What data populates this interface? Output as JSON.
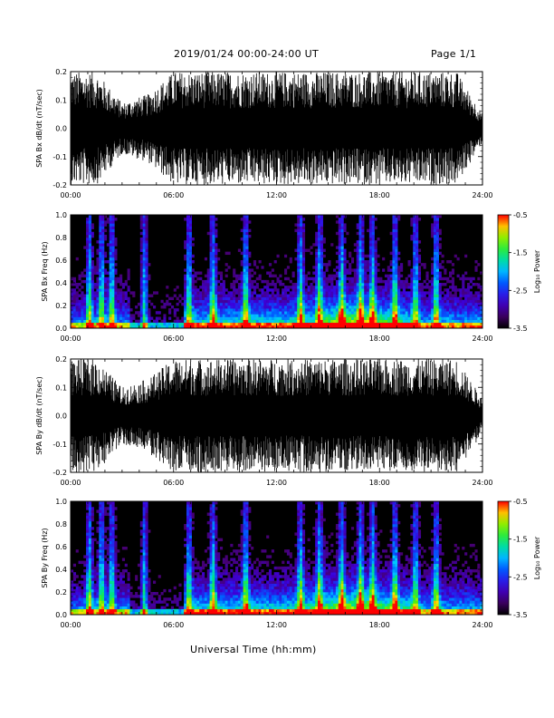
{
  "header": {
    "title": "2019/01/24  00:00-24:00 UT",
    "page": "Page 1/1"
  },
  "xlabel": "Universal Time (hh:mm)",
  "chart_data": [
    {
      "type": "line",
      "ylabel": "SPA Bx dB/dt (nT/sec)",
      "xlim": [
        0,
        24
      ],
      "ylim": [
        -0.2,
        0.2
      ],
      "x_ticks": [
        "00:00",
        "06:00",
        "12:00",
        "18:00",
        "24:00"
      ],
      "y_ticks": [
        "0.2",
        "0.1",
        "0.0",
        "-0.1",
        "-0.2"
      ],
      "envelope_hours": [
        0,
        1.5,
        3,
        4.5,
        6,
        7,
        9,
        12,
        15,
        17,
        18,
        19,
        21,
        22.5,
        24
      ],
      "envelope_amplitude": [
        0.2,
        0.2,
        0.09,
        0.12,
        0.2,
        0.2,
        0.2,
        0.2,
        0.2,
        0.2,
        0.2,
        0.2,
        0.2,
        0.2,
        0.05
      ]
    },
    {
      "type": "heatmap",
      "ylabel": "SPA Bx Freq (Hz)",
      "xlim": [
        0,
        24
      ],
      "ylim": [
        0,
        1.0
      ],
      "x_ticks": [
        "00:00",
        "06:00",
        "12:00",
        "18:00",
        "24:00"
      ],
      "y_ticks": [
        "1.0",
        "0.8",
        "0.6",
        "0.4",
        "0.2",
        "0.0"
      ],
      "colorbar": {
        "label": "Log₁₀ Power",
        "ticks": [
          "-0.5",
          "-1.5",
          "-2.5",
          "-3.5"
        ],
        "range": [
          -3.5,
          -0.5
        ]
      },
      "burst_hours": [
        1.1,
        1.8,
        2.4,
        4.3,
        6.9,
        8.3,
        10.2,
        13.4,
        14.5,
        15.8,
        16.9,
        17.6,
        18.9,
        20.1,
        21.3
      ]
    },
    {
      "type": "line",
      "ylabel": "SPA By dB/dt (nT/sec)",
      "xlim": [
        0,
        24
      ],
      "ylim": [
        -0.2,
        0.2
      ],
      "x_ticks": [
        "00:00",
        "06:00",
        "12:00",
        "18:00",
        "24:00"
      ],
      "y_ticks": [
        "0.2",
        "0.1",
        "0.0",
        "-0.1",
        "-0.2"
      ],
      "envelope_hours": [
        0,
        1.5,
        3,
        4.5,
        6,
        7,
        9,
        12,
        15,
        17,
        18,
        19,
        21,
        22.5,
        24
      ],
      "envelope_amplitude": [
        0.2,
        0.2,
        0.1,
        0.13,
        0.2,
        0.2,
        0.2,
        0.2,
        0.2,
        0.2,
        0.2,
        0.2,
        0.2,
        0.2,
        0.06
      ]
    },
    {
      "type": "heatmap",
      "ylabel": "SPA By Freq (Hz)",
      "xlim": [
        0,
        24
      ],
      "ylim": [
        0,
        1.0
      ],
      "x_ticks": [
        "00:00",
        "06:00",
        "12:00",
        "18:00",
        "24:00"
      ],
      "y_ticks": [
        "1.0",
        "0.8",
        "0.6",
        "0.4",
        "0.2",
        "0.0"
      ],
      "colorbar": {
        "label": "Log₁₀ Power",
        "ticks": [
          "-0.5",
          "-1.5",
          "-2.5",
          "-3.5"
        ],
        "range": [
          -3.5,
          -0.5
        ]
      },
      "burst_hours": [
        1.1,
        1.8,
        2.4,
        4.3,
        6.9,
        8.3,
        10.2,
        13.4,
        14.5,
        15.8,
        16.9,
        17.6,
        18.9,
        20.1,
        21.3
      ]
    }
  ]
}
